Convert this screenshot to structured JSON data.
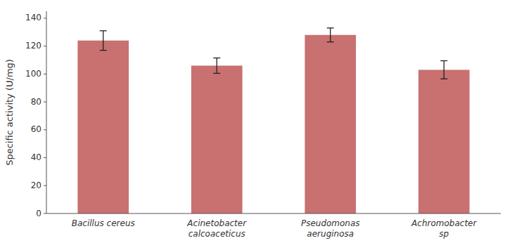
{
  "chart_data": {
    "type": "bar",
    "categories": [
      "Bacillus cereus",
      "Acinetobacter\ncalcoaceticus",
      "Pseudomonas\naeruginosa",
      "Achromobacter\nsp"
    ],
    "values": [
      124,
      106,
      128,
      103
    ],
    "errors": [
      7,
      5.5,
      5,
      6.5
    ],
    "color": "#C97070",
    "ylabel": "Specific activity (U/mg)",
    "ylim": [
      0,
      145
    ],
    "yticks": [
      0,
      20,
      40,
      60,
      80,
      100,
      120,
      140
    ],
    "grid": false
  }
}
